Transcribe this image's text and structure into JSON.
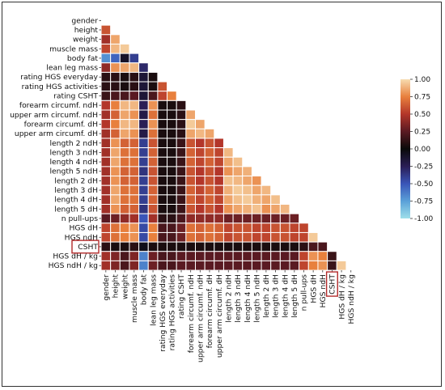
{
  "chart_data": {
    "type": "heatmap",
    "variables": [
      "gender",
      "height",
      "weight",
      "muscle mass",
      "body fat",
      "lean leg mass",
      "rating HGS everyday",
      "rating HGS activities",
      "rating CSHT",
      "forearm circumf. ndH",
      "upper arm circumf. ndH",
      "forearm circumf. dH",
      "upper arm circumf. dH",
      "length 2 ndH",
      "length 3 ndH",
      "length 4 ndH",
      "length 5 ndH",
      "length 2 dH",
      "length 3 dH",
      "length 4 dH",
      "length 5 dH",
      "n pull-ups",
      "HGS dH",
      "HGS ndH",
      "CSHT",
      "HGS dH / kg",
      "HGS ndH / kg"
    ],
    "highlighted": [
      "CSHT"
    ],
    "colorbar": {
      "min": -1.0,
      "max": 1.0,
      "ticks": [
        "1.00",
        "0.75",
        "0.50",
        "0.25",
        "0.00",
        "-0.25",
        "-0.50",
        "-0.75",
        "-1.00"
      ]
    },
    "matrix_lower": [
      [],
      [
        0.6
      ],
      [
        0.45,
        0.85
      ],
      [
        0.55,
        0.9,
        0.95
      ],
      [
        -0.7,
        -0.55,
        -0.1,
        -0.4
      ],
      [
        0.4,
        0.8,
        0.85,
        0.9,
        -0.3
      ],
      [
        0.1,
        0.1,
        0.05,
        0.1,
        -0.15,
        0.05
      ],
      [
        0.1,
        0.1,
        0.05,
        0.1,
        -0.15,
        0.05,
        0.6
      ],
      [
        0.15,
        0.2,
        0.2,
        0.25,
        -0.15,
        0.2,
        0.55,
        0.75
      ],
      [
        0.5,
        0.75,
        0.9,
        0.9,
        -0.25,
        0.8,
        0.05,
        0.05,
        0.1
      ],
      [
        0.45,
        0.65,
        0.85,
        0.8,
        -0.2,
        0.7,
        0.05,
        0.05,
        0.1,
        0.85
      ],
      [
        0.5,
        0.75,
        0.9,
        0.9,
        -0.25,
        0.8,
        0.05,
        0.05,
        0.1,
        0.95,
        0.85
      ],
      [
        0.45,
        0.65,
        0.85,
        0.8,
        -0.2,
        0.7,
        0.05,
        0.05,
        0.1,
        0.85,
        0.9,
        0.85
      ],
      [
        0.45,
        0.8,
        0.65,
        0.65,
        -0.4,
        0.6,
        0.05,
        0.05,
        0.15,
        0.6,
        0.5,
        0.6,
        0.5
      ],
      [
        0.45,
        0.85,
        0.7,
        0.7,
        -0.4,
        0.65,
        0.05,
        0.05,
        0.15,
        0.65,
        0.55,
        0.65,
        0.55,
        0.9
      ],
      [
        0.45,
        0.85,
        0.7,
        0.7,
        -0.4,
        0.65,
        0.05,
        0.05,
        0.15,
        0.65,
        0.55,
        0.65,
        0.55,
        0.85,
        0.92
      ],
      [
        0.45,
        0.8,
        0.65,
        0.65,
        -0.35,
        0.6,
        0.05,
        0.05,
        0.15,
        0.6,
        0.5,
        0.6,
        0.5,
        0.8,
        0.85,
        0.88
      ],
      [
        0.45,
        0.8,
        0.65,
        0.65,
        -0.4,
        0.6,
        0.05,
        0.05,
        0.15,
        0.6,
        0.5,
        0.6,
        0.5,
        0.92,
        0.9,
        0.85,
        0.8
      ],
      [
        0.45,
        0.85,
        0.7,
        0.7,
        -0.4,
        0.65,
        0.05,
        0.05,
        0.15,
        0.65,
        0.55,
        0.65,
        0.55,
        0.88,
        0.95,
        0.92,
        0.85,
        0.9
      ],
      [
        0.45,
        0.85,
        0.7,
        0.7,
        -0.4,
        0.65,
        0.05,
        0.05,
        0.15,
        0.65,
        0.55,
        0.65,
        0.55,
        0.85,
        0.92,
        0.95,
        0.88,
        0.85,
        0.92
      ],
      [
        0.45,
        0.8,
        0.65,
        0.65,
        -0.35,
        0.6,
        0.05,
        0.05,
        0.15,
        0.6,
        0.5,
        0.6,
        0.5,
        0.8,
        0.85,
        0.88,
        0.93,
        0.8,
        0.85,
        0.9
      ],
      [
        0.25,
        0.3,
        0.4,
        0.45,
        -0.5,
        0.45,
        0.1,
        0.1,
        0.2,
        0.4,
        0.4,
        0.4,
        0.4,
        0.3,
        0.3,
        0.3,
        0.3,
        0.3,
        0.3,
        0.3,
        0.3
      ],
      [
        0.55,
        0.7,
        0.75,
        0.8,
        -0.45,
        0.75,
        0.2,
        0.2,
        0.3,
        0.7,
        0.65,
        0.7,
        0.65,
        0.55,
        0.6,
        0.6,
        0.55,
        0.55,
        0.6,
        0.6,
        0.55,
        0.55
      ],
      [
        0.55,
        0.7,
        0.75,
        0.8,
        -0.45,
        0.75,
        0.2,
        0.2,
        0.3,
        0.7,
        0.65,
        0.7,
        0.65,
        0.55,
        0.6,
        0.6,
        0.55,
        0.55,
        0.6,
        0.6,
        0.55,
        0.55,
        0.95
      ],
      [
        0.1,
        0.05,
        0.05,
        0.1,
        -0.05,
        0.05,
        0.05,
        0.05,
        0.05,
        0.05,
        0.05,
        0.05,
        0.05,
        0.05,
        0.05,
        0.05,
        0.05,
        0.05,
        0.05,
        0.05,
        0.05,
        0.1,
        0.2,
        0.2
      ],
      [
        0.45,
        0.35,
        0.2,
        0.35,
        -0.65,
        0.3,
        0.2,
        0.2,
        0.25,
        0.25,
        0.25,
        0.25,
        0.25,
        0.25,
        0.25,
        0.25,
        0.25,
        0.25,
        0.25,
        0.25,
        0.25,
        0.55,
        0.8,
        0.75,
        0.15
      ],
      [
        0.45,
        0.35,
        0.2,
        0.35,
        -0.65,
        0.3,
        0.2,
        0.2,
        0.25,
        0.25,
        0.25,
        0.25,
        0.25,
        0.25,
        0.25,
        0.25,
        0.25,
        0.25,
        0.25,
        0.25,
        0.25,
        0.55,
        0.75,
        0.8,
        0.15,
        0.95
      ]
    ]
  }
}
